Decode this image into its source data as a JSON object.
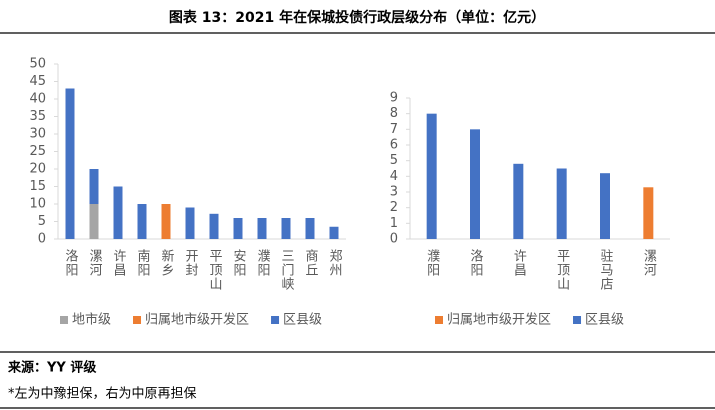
{
  "header": {
    "title": "图表 13：2021 年在保城投债行政层级分布（单位：亿元）"
  },
  "chart_data": [
    {
      "type": "stacked_bar",
      "categories": [
        "洛阳",
        "漯河",
        "许昌",
        "南阳",
        "新乡",
        "开封",
        "平顶山",
        "安阳",
        "濮阳",
        "三门峡",
        "商丘",
        "郑州"
      ],
      "series": [
        {
          "name": "地市级",
          "color": "#a5a5a5",
          "values": [
            null,
            10,
            null,
            null,
            null,
            null,
            null,
            null,
            null,
            null,
            null,
            null
          ]
        },
        {
          "name": "归属地市级开发区",
          "color": "#ed7d31",
          "values": [
            null,
            null,
            null,
            null,
            10,
            null,
            null,
            null,
            null,
            null,
            null,
            null
          ]
        },
        {
          "name": "区县级",
          "color": "#4472c4",
          "values": [
            43,
            10,
            15,
            10,
            null,
            9,
            7.2,
            6,
            6,
            6,
            6,
            3.5
          ]
        }
      ],
      "ylim": [
        0,
        50
      ],
      "yticks": [
        0,
        5,
        10,
        15,
        20,
        25,
        30,
        35,
        40,
        45,
        50
      ],
      "grid": false,
      "legend": "bottom"
    },
    {
      "type": "stacked_bar",
      "categories": [
        "濮阳",
        "洛阳",
        "许昌",
        "平顶山",
        "驻马店",
        "漯河"
      ],
      "series": [
        {
          "name": "归属地市级开发区",
          "color": "#ed7d31",
          "values": [
            null,
            null,
            null,
            null,
            null,
            3.3
          ]
        },
        {
          "name": "区县级",
          "color": "#4472c4",
          "values": [
            8,
            7,
            4.8,
            4.5,
            4.2,
            null
          ]
        }
      ],
      "ylim": [
        0,
        9
      ],
      "yticks": [
        0,
        1,
        2,
        3,
        4,
        5,
        6,
        7,
        8,
        9
      ],
      "grid": false,
      "legend": "bottom"
    }
  ],
  "footer": {
    "source": "来源：YY 评级",
    "note": "*左为中豫担保，右为中原再担保"
  }
}
